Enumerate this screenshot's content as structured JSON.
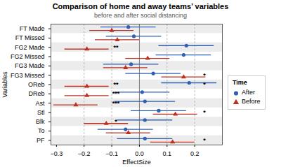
{
  "chart_data": {
    "type": "forest",
    "title": "Comparison of home and away teams’ variables",
    "subtitle": "before and after social distancing",
    "xlabel": "EffectSize",
    "ylabel": "Variables",
    "categories": [
      "FT Made",
      "FT Missed",
      "FG2 Made",
      "FG2 Missed",
      "FG3 Made",
      "FG3 Missed",
      "OReb",
      "DReb",
      "Ast",
      "Stl",
      "Blk",
      "To",
      "PF"
    ],
    "series": [
      {
        "name": "After",
        "color": "#3060b0",
        "marker": "circle",
        "values": [
          -0.04,
          -0.02,
          0.17,
          0.16,
          -0.03,
          0.05,
          0.18,
          0.01,
          0.02,
          0.07,
          0.02,
          -0.05,
          0.02
        ],
        "lower": [
          -0.14,
          -0.12,
          0.07,
          0.06,
          -0.13,
          -0.05,
          0.08,
          -0.09,
          -0.09,
          -0.03,
          -0.08,
          -0.15,
          -0.08
        ],
        "upper": [
          0.06,
          0.08,
          0.27,
          0.26,
          0.07,
          0.15,
          0.28,
          0.11,
          0.13,
          0.17,
          0.12,
          0.05,
          0.12
        ]
      },
      {
        "name": "Before",
        "color": "#c03020",
        "marker": "triangle",
        "values": [
          -0.1,
          -0.08,
          -0.19,
          0.03,
          -0.05,
          0.16,
          -0.19,
          -0.19,
          -0.23,
          0.13,
          -0.12,
          -0.04,
          0.12
        ],
        "lower": [
          -0.18,
          -0.16,
          -0.27,
          -0.05,
          -0.13,
          0.08,
          -0.27,
          -0.27,
          -0.31,
          0.05,
          -0.2,
          -0.12,
          0.04
        ],
        "upper": [
          -0.02,
          0.0,
          -0.11,
          0.11,
          0.03,
          0.24,
          -0.11,
          -0.11,
          -0.15,
          0.21,
          -0.04,
          0.04,
          0.2
        ]
      }
    ],
    "xlim": [
      -0.32,
      0.3
    ],
    "xticks": [
      -0.3,
      -0.2,
      -0.1,
      {
        "value": 0,
        "label": "0.0"
      },
      0.1,
      0.2
    ],
    "reference_lines": [
      -0.2,
      -0.1,
      0.1,
      0.2
    ],
    "zero_line": 0,
    "annotations": [
      {
        "category": "FG2 Made",
        "text": "**",
        "side": "left"
      },
      {
        "category": "OReb",
        "text": "**",
        "side": "left"
      },
      {
        "category": "DReb",
        "text": "***",
        "side": "left"
      },
      {
        "category": "Ast",
        "text": "***",
        "side": "left"
      },
      {
        "category": "Blk",
        "text": "*",
        "side": "left"
      },
      {
        "category": "FG3 Missed",
        "text": "*",
        "side": "right"
      },
      {
        "category": "OReb",
        "text": "*",
        "side": "right"
      },
      {
        "category": "Stl",
        "text": "*",
        "side": "right"
      },
      {
        "category": "PF",
        "text": "*",
        "side": "right"
      }
    ],
    "legend": "right",
    "legend_title": "Time",
    "grid": false
  }
}
